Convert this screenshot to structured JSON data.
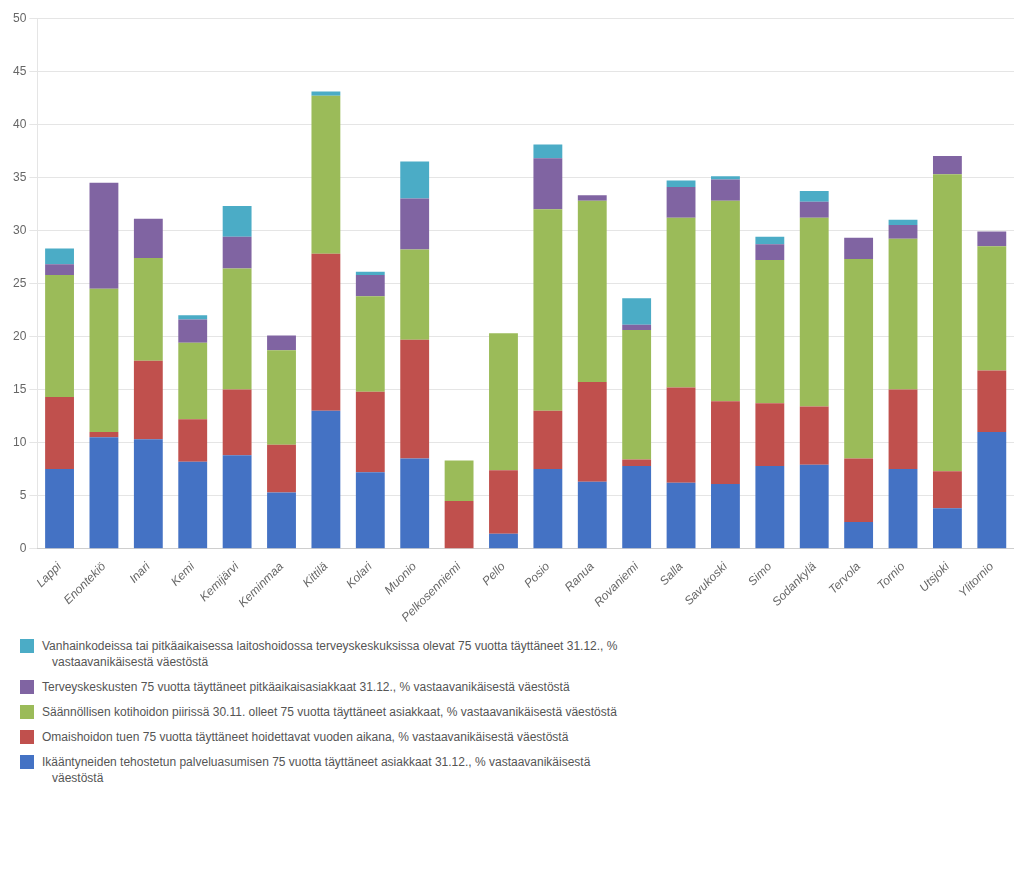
{
  "chart_data": {
    "type": "bar",
    "stacked": true,
    "categories": [
      "Lappi",
      "Enontekiö",
      "Inari",
      "Kemi",
      "Kemijärvi",
      "Keminmaa",
      "Kittilä",
      "Kolari",
      "Muonio",
      "Pelkosenniemi",
      "Pello",
      "Posio",
      "Ranua",
      "Rovaniemi",
      "Salla",
      "Savukoski",
      "Simo",
      "Sodankylä",
      "Tervola",
      "Tornio",
      "Utsjoki",
      "Ylitornio"
    ],
    "series": [
      {
        "name": "Ikääntyneiden tehostetun palveluasumisen 75 vuotta täyttäneet asiakkaat 31.12., % vastaavanikäisestä\n   väestöstä",
        "color": "#4472C4",
        "values": [
          7.5,
          10.5,
          10.3,
          8.2,
          8.8,
          5.3,
          13.0,
          7.2,
          8.5,
          0.0,
          1.4,
          7.5,
          6.3,
          7.8,
          6.2,
          6.1,
          7.8,
          7.9,
          2.5,
          7.5,
          3.8,
          11.0
        ]
      },
      {
        "name": "Omaishoidon tuen 75 vuotta täyttäneet hoidettavat vuoden aikana, % vastaavanikäisestä väestöstä",
        "color": "#C0504D",
        "values": [
          6.8,
          0.5,
          7.4,
          4.0,
          6.2,
          4.5,
          14.8,
          7.6,
          11.2,
          4.5,
          6.0,
          5.5,
          9.4,
          0.6,
          9.0,
          7.8,
          5.9,
          5.5,
          6.0,
          7.5,
          3.5,
          5.8
        ]
      },
      {
        "name": "Säännöllisen kotihoidon piirissä 30.11. olleet 75 vuotta täyttäneet asiakkaat, % vastaavanikäisestä väestöstä",
        "color": "#9BBB59",
        "values": [
          11.5,
          13.5,
          9.7,
          7.2,
          11.4,
          8.9,
          14.9,
          9.0,
          8.5,
          3.8,
          12.9,
          19.0,
          17.1,
          12.2,
          16.0,
          18.9,
          13.5,
          17.8,
          18.8,
          14.2,
          28.0,
          11.7
        ]
      },
      {
        "name": "Terveyskeskusten 75 vuotta täyttäneet pitkäaikaisasiakkaat 31.12., % vastaavanikäisestä väestöstä",
        "color": "#8064A2",
        "values": [
          1.0,
          10.0,
          3.7,
          2.2,
          3.0,
          1.4,
          0.0,
          2.0,
          4.8,
          0.0,
          0.0,
          4.8,
          0.5,
          0.5,
          2.9,
          2.0,
          1.5,
          1.5,
          2.0,
          1.3,
          1.7,
          1.4
        ]
      },
      {
        "name": "Vanhainkodeissa tai pitkäaikaisessa laitoshoidossa terveyskeskuksissa olevat 75 vuotta täyttäneet 31.12., %\n   vastaavanikäisestä väestöstä",
        "color": "#4BACC6",
        "values": [
          1.5,
          0.0,
          0.0,
          0.4,
          2.9,
          0.0,
          0.4,
          0.3,
          3.5,
          0.0,
          0.0,
          1.3,
          0.0,
          2.5,
          0.6,
          0.3,
          0.7,
          1.0,
          0.0,
          0.5,
          0.0,
          0.0
        ]
      }
    ],
    "ylim": [
      0,
      50
    ],
    "yticks": [
      0,
      5,
      10,
      15,
      20,
      25,
      30,
      35,
      40,
      45,
      50
    ],
    "grid": true,
    "legend": "bottom"
  }
}
